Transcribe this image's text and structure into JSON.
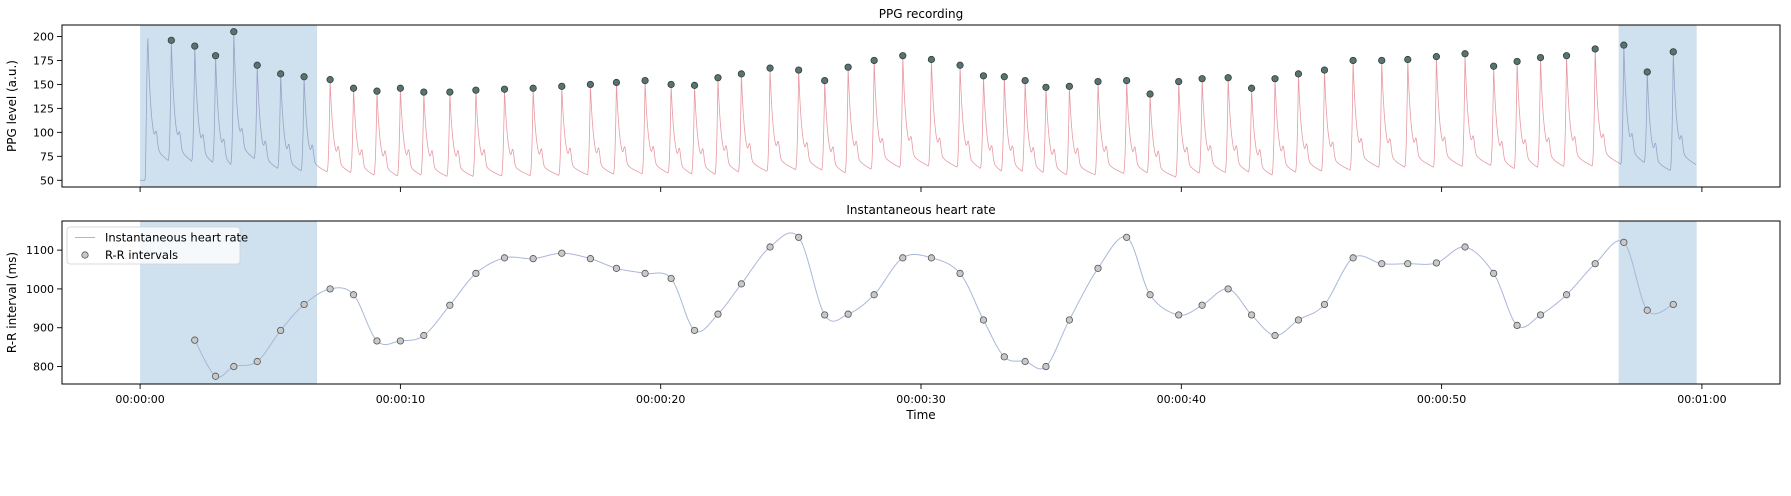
{
  "chart_data": [
    {
      "type": "line",
      "title": "PPG recording",
      "ylabel": "PPG level (a.u.)",
      "xlabel": "",
      "ylim": [
        43,
        212
      ],
      "yticks": [
        50,
        75,
        100,
        125,
        150,
        175,
        200
      ],
      "xlim_seconds": [
        -3,
        63
      ],
      "xticks_seconds": [
        0,
        10,
        20,
        30,
        40,
        50,
        60
      ],
      "shaded_regions_seconds": [
        [
          0,
          6.8
        ],
        [
          56.8,
          59.8
        ]
      ],
      "colors": {
        "signal": "#e89aa3",
        "signal_in_shaded": "#9aa3c7",
        "peak_fill": "#5a7270",
        "shade": "#cfe0ee"
      },
      "series": [
        {
          "type": "scatter",
          "x_seconds": [
            1.2,
            2.1,
            2.9,
            3.6,
            4.5,
            5.4,
            6.3,
            7.3,
            8.2,
            9.1,
            10.0,
            10.9,
            11.9,
            12.9,
            14.0,
            15.1,
            16.2,
            17.3,
            18.3,
            19.4,
            20.4,
            21.3,
            22.2,
            23.1,
            24.2,
            25.3,
            26.3,
            27.2,
            28.2,
            29.3,
            30.4,
            31.5,
            32.4,
            33.2,
            34.0,
            34.8,
            35.7,
            36.8,
            37.9,
            38.8,
            39.9,
            40.8,
            41.8,
            42.7,
            43.6,
            44.5,
            45.5,
            46.6,
            47.7,
            48.7,
            49.8,
            50.9,
            52.0,
            52.9,
            53.8,
            54.8,
            55.9,
            57.0,
            57.9,
            58.9
          ],
          "y": [
            196,
            190,
            180,
            205,
            170,
            161,
            158,
            155,
            146,
            143,
            146,
            142,
            142,
            144,
            145,
            146,
            148,
            150,
            152,
            154,
            150,
            149,
            157,
            161,
            167,
            165,
            154,
            168,
            175,
            180,
            176,
            170,
            159,
            158,
            154,
            147,
            148,
            153,
            154,
            140,
            153,
            156,
            157,
            146,
            156,
            161,
            165,
            175,
            175,
            176,
            179,
            182,
            169,
            174,
            178,
            180,
            187,
            191,
            163,
            184
          ]
        }
      ]
    },
    {
      "type": "line",
      "title": "Instantaneous heart rate",
      "ylabel": "R-R interval (ms)",
      "xlabel": "Time",
      "ylim": [
        755,
        1175
      ],
      "yticks": [
        800,
        900,
        1000,
        1100
      ],
      "xlim_seconds": [
        -3,
        63
      ],
      "xticks_seconds": [
        0,
        10,
        20,
        30,
        40,
        50,
        60
      ],
      "xtick_labels": [
        "00:00:00",
        "00:00:10",
        "00:00:20",
        "00:00:30",
        "00:00:40",
        "00:00:50",
        "00:01:00"
      ],
      "shaded_regions_seconds": [
        [
          0,
          6.8
        ],
        [
          56.8,
          59.8
        ]
      ],
      "colors": {
        "line": "#a9b7d9",
        "point_fill": "#c8c8c8",
        "shade": "#cfe0ee"
      },
      "legend": {
        "position": "top-left",
        "entries": [
          "Instantaneous heart rate",
          "R-R intervals"
        ]
      },
      "series": [
        {
          "name": "Instantaneous heart rate",
          "type": "line"
        },
        {
          "name": "R-R intervals",
          "type": "scatter",
          "x_seconds": [
            2.1,
            2.9,
            3.6,
            4.5,
            5.4,
            6.3,
            7.3,
            8.2,
            9.1,
            10.0,
            10.9,
            11.9,
            12.9,
            14.0,
            15.1,
            16.2,
            17.3,
            18.3,
            19.4,
            20.4,
            21.3,
            22.2,
            23.1,
            24.2,
            25.3,
            26.3,
            27.2,
            28.2,
            29.3,
            30.4,
            31.5,
            32.4,
            33.2,
            34.0,
            34.8,
            35.7,
            36.8,
            37.9,
            38.8,
            39.9,
            40.8,
            41.8,
            42.7,
            43.6,
            44.5,
            45.5,
            46.6,
            47.7,
            48.7,
            49.8,
            50.9,
            52.0,
            52.9,
            53.8,
            54.8,
            55.9,
            57.0,
            57.9,
            58.9
          ],
          "y": [
            868,
            775,
            800,
            813,
            893,
            960,
            1000,
            985,
            866,
            866,
            880,
            958,
            1040,
            1080,
            1078,
            1092,
            1078,
            1053,
            1040,
            1027,
            893,
            935,
            1013,
            1108,
            1133,
            933,
            935,
            985,
            1080,
            1080,
            1040,
            920,
            825,
            813,
            800,
            920,
            1053,
            1133,
            985,
            933,
            958,
            1000,
            933,
            880,
            920,
            960,
            1080,
            1065,
            1065,
            1067,
            1108,
            1040,
            906,
            933,
            985,
            1065,
            1120,
            945,
            960
          ]
        }
      ]
    }
  ]
}
